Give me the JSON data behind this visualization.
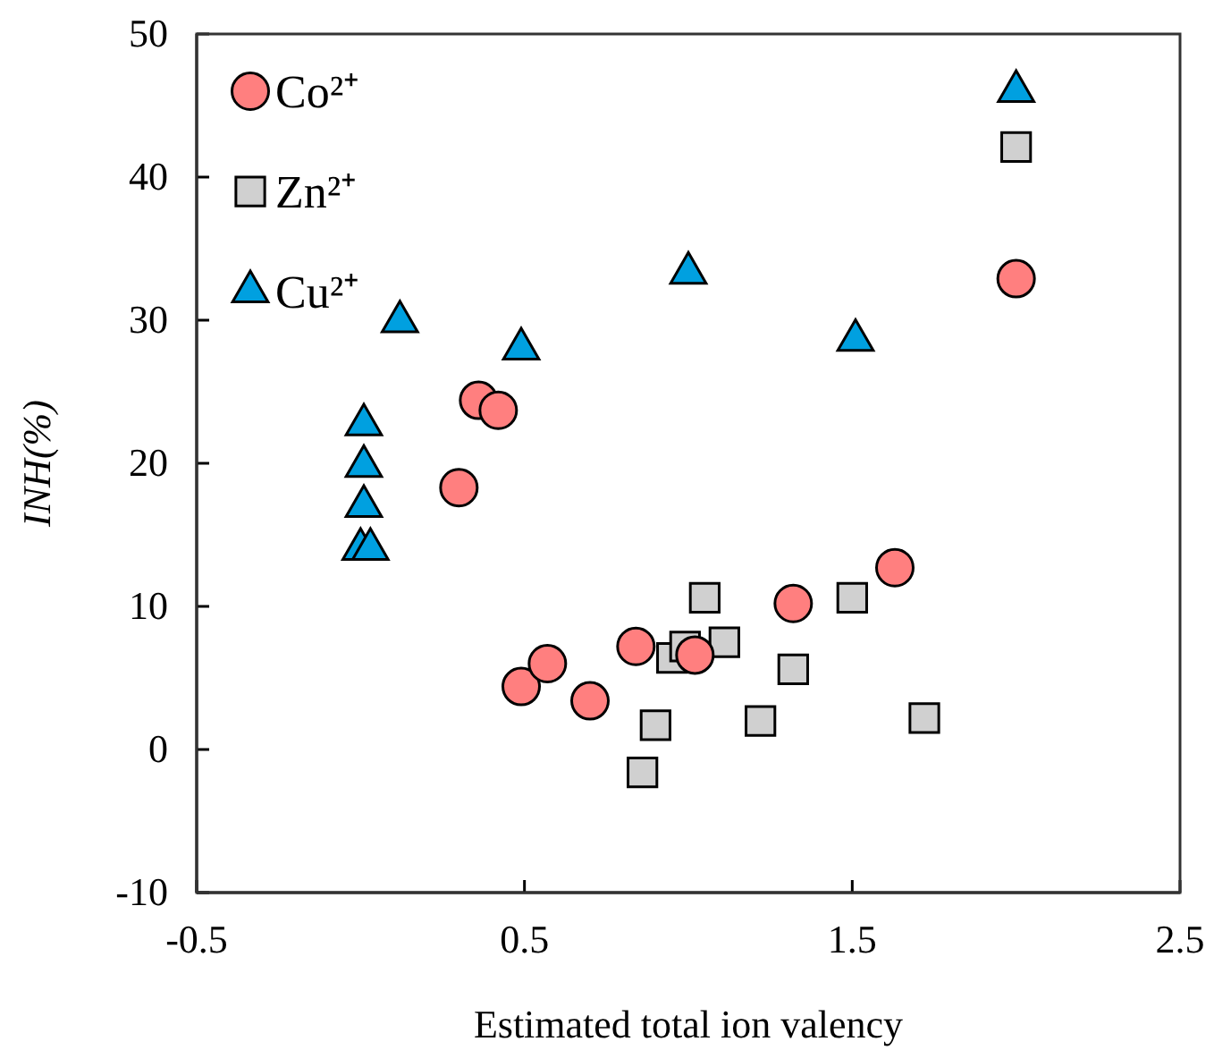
{
  "chart_data": {
    "type": "scatter",
    "xlabel": "Estimated total ion valency",
    "ylabel": "INH(%)",
    "xlim": [
      -0.5,
      2.5
    ],
    "xticks": [
      -0.5,
      0.5,
      1.5,
      2.5
    ],
    "ylim": [
      -10,
      50
    ],
    "yticks": [
      -10,
      0,
      10,
      20,
      30,
      40,
      50
    ],
    "grid": false,
    "legend": "top left",
    "series": [
      {
        "name": "Co²⁺",
        "color": "#ff7f7f",
        "marker": "circle",
        "x": [
          0.3,
          0.36,
          0.42,
          0.49,
          0.57,
          0.7,
          0.84,
          1.02,
          1.32,
          1.63,
          2.0
        ],
        "values": [
          18.3,
          24.4,
          23.7,
          4.4,
          6.0,
          3.4,
          7.2,
          6.6,
          10.2,
          12.7,
          32.9
        ]
      },
      {
        "name": "Zn²⁺",
        "color": "#d0d0d0",
        "marker": "square",
        "x": [
          0.86,
          0.9,
          0.95,
          0.99,
          1.05,
          1.11,
          1.22,
          1.32,
          1.5,
          1.72,
          2.0
        ],
        "values": [
          -1.6,
          1.7,
          6.4,
          7.2,
          10.6,
          7.5,
          2.0,
          5.6,
          10.6,
          2.2,
          42.1
        ]
      },
      {
        "name": "Cu²⁺",
        "color": "#00a0e0",
        "marker": "triangle",
        "x": [
          0.01,
          0.01,
          0.01,
          0.0,
          0.03,
          0.12,
          0.49,
          1.0,
          1.51,
          2.0
        ],
        "values": [
          22.7,
          19.8,
          17.0,
          14.0,
          14.0,
          29.9,
          28.0,
          33.3,
          28.6,
          46.0
        ]
      }
    ]
  }
}
